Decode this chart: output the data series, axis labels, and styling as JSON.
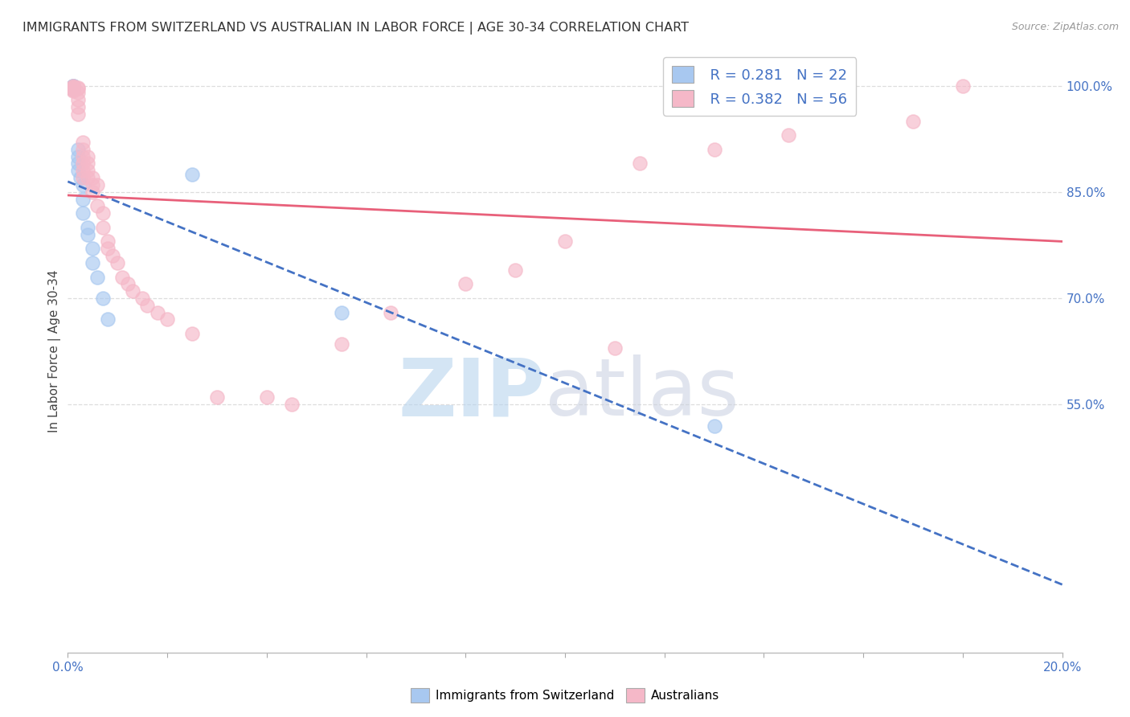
{
  "title": "IMMIGRANTS FROM SWITZERLAND VS AUSTRALIAN IN LABOR FORCE | AGE 30-34 CORRELATION CHART",
  "source": "Source: ZipAtlas.com",
  "xlabel": "",
  "ylabel": "In Labor Force | Age 30-34",
  "xlim": [
    0.0,
    0.2
  ],
  "ylim": [
    0.2,
    1.05
  ],
  "xticks": [
    0.0,
    0.02,
    0.04,
    0.06,
    0.08,
    0.1,
    0.12,
    0.14,
    0.16,
    0.18,
    0.2
  ],
  "xtick_labels": [
    "0.0%",
    "",
    "",
    "",
    "",
    "",
    "",
    "",
    "",
    "",
    "20.0%"
  ],
  "yticks_right": [
    0.55,
    0.7,
    0.85,
    1.0
  ],
  "ytick_labels_right": [
    "55.0%",
    "70.0%",
    "85.0%",
    "100.0%"
  ],
  "grid_color": "#dddddd",
  "background_color": "#ffffff",
  "swiss_color": "#a8c8f0",
  "aus_color": "#f5b8c8",
  "swiss_line_color": "#4472c4",
  "aus_line_color": "#e8607a",
  "legend_R_swiss": "R = 0.281",
  "legend_N_swiss": "N = 22",
  "legend_R_aus": "R = 0.382",
  "legend_N_aus": "N = 56",
  "swiss_x": [
    0.001,
    0.001,
    0.001,
    0.001,
    0.002,
    0.002,
    0.002,
    0.002,
    0.0025,
    0.003,
    0.003,
    0.003,
    0.004,
    0.004,
    0.005,
    0.005,
    0.006,
    0.007,
    0.008,
    0.025,
    0.055,
    0.13
  ],
  "swiss_y": [
    0.999,
    0.999,
    0.999,
    0.995,
    0.91,
    0.9,
    0.89,
    0.88,
    0.87,
    0.86,
    0.84,
    0.82,
    0.8,
    0.79,
    0.77,
    0.75,
    0.73,
    0.7,
    0.67,
    0.875,
    0.68,
    0.52
  ],
  "aus_x": [
    0.001,
    0.001,
    0.001,
    0.001,
    0.001,
    0.001,
    0.001,
    0.002,
    0.002,
    0.002,
    0.002,
    0.002,
    0.002,
    0.003,
    0.003,
    0.003,
    0.003,
    0.003,
    0.003,
    0.004,
    0.004,
    0.004,
    0.004,
    0.005,
    0.005,
    0.005,
    0.006,
    0.006,
    0.007,
    0.007,
    0.008,
    0.008,
    0.009,
    0.01,
    0.011,
    0.012,
    0.013,
    0.015,
    0.016,
    0.018,
    0.02,
    0.025,
    0.03,
    0.04,
    0.045,
    0.055,
    0.065,
    0.08,
    0.09,
    0.1,
    0.11,
    0.115,
    0.13,
    0.145,
    0.17,
    0.18
  ],
  "aus_y": [
    0.999,
    0.998,
    0.997,
    0.996,
    0.995,
    0.994,
    0.993,
    0.997,
    0.996,
    0.99,
    0.98,
    0.97,
    0.96,
    0.92,
    0.91,
    0.9,
    0.89,
    0.88,
    0.87,
    0.9,
    0.89,
    0.88,
    0.87,
    0.87,
    0.86,
    0.85,
    0.86,
    0.83,
    0.82,
    0.8,
    0.78,
    0.77,
    0.76,
    0.75,
    0.73,
    0.72,
    0.71,
    0.7,
    0.69,
    0.68,
    0.67,
    0.65,
    0.56,
    0.56,
    0.55,
    0.635,
    0.68,
    0.72,
    0.74,
    0.78,
    0.63,
    0.89,
    0.91,
    0.93,
    0.95,
    0.999
  ]
}
